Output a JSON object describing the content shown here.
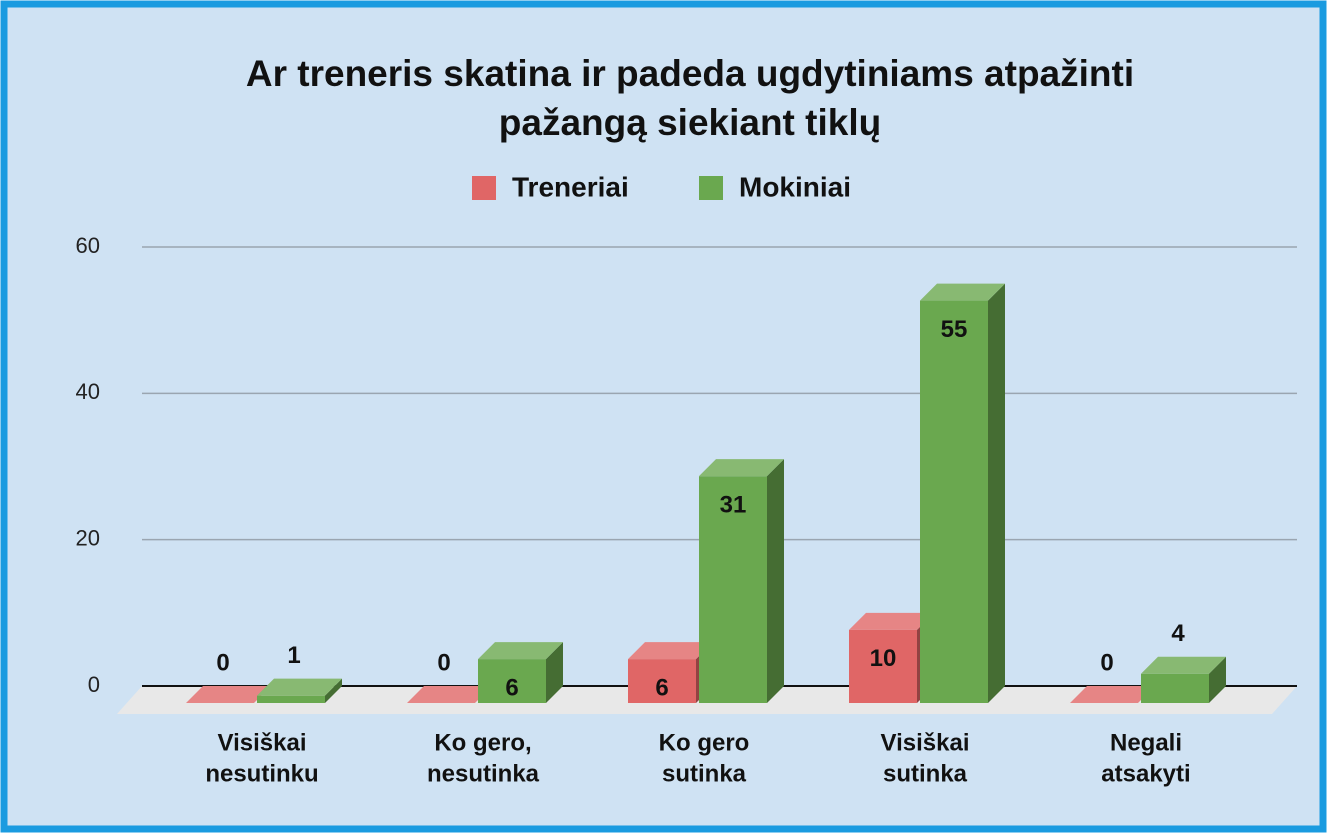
{
  "chart_data": {
    "type": "bar3d",
    "title_lines": [
      "Ar treneris skatina ir padeda  ugdytiniams  atpažinti",
      "pažangą siekiant tiklų"
    ],
    "categories": [
      [
        "Visiškai",
        "nesutinku"
      ],
      [
        "Ko gero,",
        "nesutinka"
      ],
      [
        "Ko gero",
        "sutinka"
      ],
      [
        "Visiškai",
        "sutinka"
      ],
      [
        "Negali",
        "atsakyti"
      ]
    ],
    "series": [
      {
        "name": "Treneriai",
        "color": "#e06666",
        "values": [
          0,
          0,
          6,
          10,
          0
        ]
      },
      {
        "name": "Mokiniai",
        "color": "#6aa84f",
        "values": [
          1,
          6,
          31,
          55,
          4
        ]
      }
    ],
    "ylim": [
      0,
      60
    ],
    "yticks": [
      0,
      20,
      40,
      60
    ],
    "grid": true,
    "legend": "top"
  }
}
